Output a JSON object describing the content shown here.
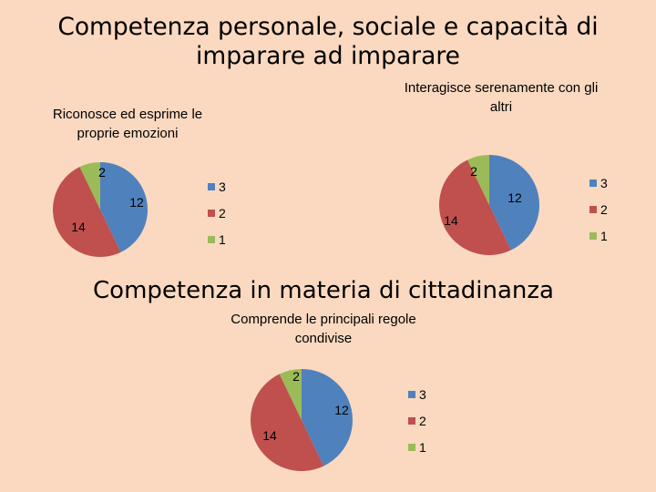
{
  "header": {
    "title": "Competenza personale, sociale e capacità di imparare ad imparare",
    "section2": "Competenza in materia di cittadinanza"
  },
  "colors": {
    "3": "#4f81bd",
    "2": "#c0504d",
    "1": "#9bbb59"
  },
  "chart_data": [
    {
      "type": "pie",
      "title": "Riconosce ed esprime le proprie emozioni",
      "categories": [
        "3",
        "2",
        "1"
      ],
      "values": [
        12,
        14,
        2
      ],
      "data_labels": [
        "12",
        "14",
        "2"
      ],
      "legend": [
        "3",
        "2",
        "1"
      ],
      "legend_position": "right"
    },
    {
      "type": "pie",
      "title": "Interagisce serenamente con gli altri",
      "categories": [
        "3",
        "2",
        "1"
      ],
      "values": [
        12,
        14,
        2
      ],
      "data_labels": [
        "12",
        "14",
        "2"
      ],
      "legend": [
        "3",
        "2",
        "1"
      ],
      "legend_position": "right"
    },
    {
      "type": "pie",
      "title": "Comprende le principali regole condivise",
      "categories": [
        "3",
        "2",
        "1"
      ],
      "values": [
        12,
        14,
        2
      ],
      "data_labels": [
        "12",
        "14",
        "2"
      ],
      "legend": [
        "3",
        "2",
        "1"
      ],
      "legend_position": "right"
    }
  ]
}
